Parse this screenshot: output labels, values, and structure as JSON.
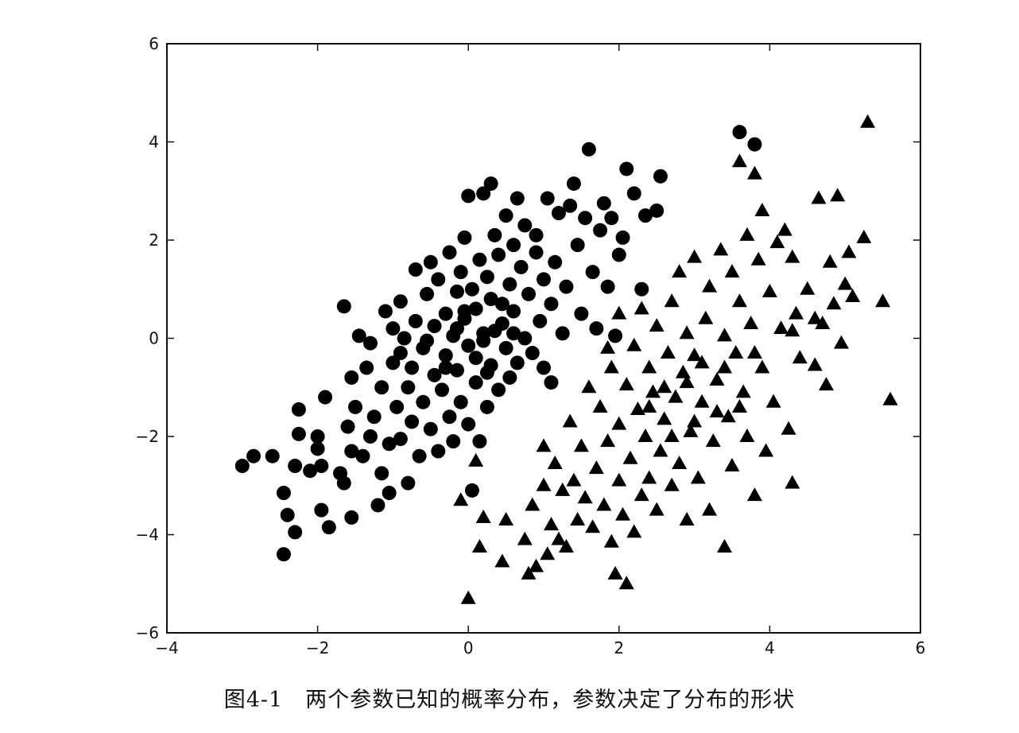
{
  "chart_data": {
    "type": "scatter",
    "title": "",
    "xlabel": "",
    "ylabel": "",
    "xlim": [
      -4,
      6
    ],
    "ylim": [
      -6,
      6
    ],
    "x_ticks": [
      "−4",
      "−2",
      "0",
      "2",
      "4",
      "6"
    ],
    "y_ticks": [
      "6",
      "4",
      "2",
      "0",
      "−2",
      "−4",
      "−6"
    ],
    "grid": false,
    "legend": "none",
    "series": [
      {
        "marker": "circle",
        "color": "#000000",
        "points": [
          [
            -3.0,
            -2.6
          ],
          [
            -2.85,
            -2.4
          ],
          [
            -2.6,
            -2.4
          ],
          [
            -2.45,
            -4.4
          ],
          [
            -2.45,
            -3.15
          ],
          [
            -2.4,
            -3.6
          ],
          [
            -2.3,
            -3.95
          ],
          [
            -2.3,
            -2.6
          ],
          [
            -2.25,
            -1.45
          ],
          [
            -2.25,
            -1.95
          ],
          [
            -2.1,
            -2.7
          ],
          [
            -2.0,
            -2.0
          ],
          [
            -2.0,
            -2.25
          ],
          [
            -1.95,
            -2.6
          ],
          [
            -1.95,
            -3.5
          ],
          [
            -1.9,
            -1.2
          ],
          [
            -1.85,
            -3.85
          ],
          [
            -1.7,
            -2.75
          ],
          [
            -1.65,
            -2.95
          ],
          [
            -1.65,
            0.65
          ],
          [
            -1.6,
            -1.8
          ],
          [
            -1.55,
            -2.3
          ],
          [
            -1.55,
            -3.65
          ],
          [
            -1.55,
            -0.8
          ],
          [
            -1.5,
            -1.4
          ],
          [
            -1.45,
            0.05
          ],
          [
            -1.4,
            -2.4
          ],
          [
            -1.35,
            -0.6
          ],
          [
            -1.3,
            -2.0
          ],
          [
            -1.3,
            -0.1
          ],
          [
            -1.25,
            -1.6
          ],
          [
            -1.2,
            -3.4
          ],
          [
            -1.15,
            -2.75
          ],
          [
            -1.15,
            -1.0
          ],
          [
            -1.1,
            0.55
          ],
          [
            -1.05,
            -3.15
          ],
          [
            -1.05,
            -2.15
          ],
          [
            -1.0,
            -0.5
          ],
          [
            -1.0,
            0.2
          ],
          [
            -0.95,
            -1.4
          ],
          [
            -0.9,
            -2.05
          ],
          [
            -0.9,
            -0.3
          ],
          [
            -0.9,
            0.75
          ],
          [
            -0.85,
            0.0
          ],
          [
            -0.8,
            -2.95
          ],
          [
            -0.8,
            -1.0
          ],
          [
            -0.75,
            -0.6
          ],
          [
            -0.75,
            -1.7
          ],
          [
            -0.7,
            1.4
          ],
          [
            -0.7,
            0.35
          ],
          [
            -0.65,
            -2.4
          ],
          [
            -0.6,
            -1.3
          ],
          [
            -0.6,
            -0.2
          ],
          [
            -0.55,
            0.9
          ],
          [
            -0.5,
            1.55
          ],
          [
            -0.5,
            -1.85
          ],
          [
            -0.45,
            -0.75
          ],
          [
            -0.45,
            0.25
          ],
          [
            -0.4,
            1.2
          ],
          [
            -0.4,
            -2.3
          ],
          [
            -0.35,
            -1.05
          ],
          [
            -0.3,
            0.5
          ],
          [
            -0.3,
            -0.35
          ],
          [
            -0.25,
            1.75
          ],
          [
            -0.25,
            -1.6
          ],
          [
            -0.2,
            -2.1
          ],
          [
            -0.2,
            0.05
          ],
          [
            -0.15,
            0.95
          ],
          [
            -0.15,
            -0.65
          ],
          [
            -0.1,
            1.35
          ],
          [
            -0.1,
            -1.3
          ],
          [
            -0.05,
            2.05
          ],
          [
            -0.05,
            0.4
          ],
          [
            0.0,
            2.9
          ],
          [
            0.0,
            -0.15
          ],
          [
            0.0,
            -1.75
          ],
          [
            0.05,
            1.0
          ],
          [
            0.05,
            -3.1
          ],
          [
            0.1,
            0.6
          ],
          [
            0.1,
            -0.9
          ],
          [
            0.15,
            1.6
          ],
          [
            0.15,
            -2.1
          ],
          [
            0.2,
            2.95
          ],
          [
            0.2,
            0.1
          ],
          [
            0.25,
            -1.4
          ],
          [
            0.25,
            1.25
          ],
          [
            0.3,
            3.15
          ],
          [
            0.3,
            -0.55
          ],
          [
            0.3,
            0.8
          ],
          [
            0.35,
            2.1
          ],
          [
            0.4,
            -1.05
          ],
          [
            0.4,
            1.7
          ],
          [
            0.45,
            0.3
          ],
          [
            0.5,
            -0.2
          ],
          [
            0.5,
            2.5
          ],
          [
            0.55,
            1.1
          ],
          [
            0.55,
            -0.8
          ],
          [
            0.6,
            1.9
          ],
          [
            0.6,
            0.55
          ],
          [
            0.65,
            2.85
          ],
          [
            0.65,
            -0.5
          ],
          [
            0.7,
            1.45
          ],
          [
            0.75,
            2.3
          ],
          [
            0.75,
            0.0
          ],
          [
            0.8,
            0.9
          ],
          [
            0.85,
            -0.3
          ],
          [
            0.9,
            1.75
          ],
          [
            0.9,
            2.1
          ],
          [
            0.95,
            0.35
          ],
          [
            1.0,
            1.2
          ],
          [
            1.0,
            -0.6
          ],
          [
            1.05,
            2.85
          ],
          [
            1.1,
            0.7
          ],
          [
            1.1,
            -0.9
          ],
          [
            1.15,
            1.55
          ],
          [
            1.2,
            2.55
          ],
          [
            1.25,
            0.1
          ],
          [
            1.3,
            1.05
          ],
          [
            1.35,
            2.7
          ],
          [
            1.4,
            3.15
          ],
          [
            1.45,
            1.9
          ],
          [
            1.5,
            0.5
          ],
          [
            1.55,
            2.45
          ],
          [
            1.6,
            3.85
          ],
          [
            1.65,
            1.35
          ],
          [
            1.7,
            0.2
          ],
          [
            1.75,
            2.2
          ],
          [
            1.8,
            2.75
          ],
          [
            1.85,
            1.05
          ],
          [
            1.9,
            2.45
          ],
          [
            1.95,
            0.05
          ],
          [
            2.0,
            1.7
          ],
          [
            2.05,
            2.05
          ],
          [
            2.1,
            3.45
          ],
          [
            2.2,
            2.95
          ],
          [
            2.3,
            1.0
          ],
          [
            2.35,
            2.5
          ],
          [
            2.5,
            2.6
          ],
          [
            2.55,
            3.3
          ],
          [
            3.6,
            4.2
          ],
          [
            3.8,
            3.95
          ],
          [
            0.2,
            -0.05
          ],
          [
            -0.05,
            0.55
          ],
          [
            0.35,
            0.15
          ],
          [
            -0.3,
            -0.6
          ],
          [
            0.1,
            -0.4
          ],
          [
            -0.55,
            -0.05
          ],
          [
            0.45,
            0.7
          ],
          [
            -0.15,
            0.2
          ],
          [
            0.25,
            -0.7
          ],
          [
            0.6,
            0.1
          ]
        ]
      },
      {
        "marker": "triangle",
        "color": "#000000",
        "points": [
          [
            0.0,
            -5.3
          ],
          [
            -0.1,
            -3.3
          ],
          [
            0.1,
            -2.5
          ],
          [
            0.15,
            -4.25
          ],
          [
            0.2,
            -3.65
          ],
          [
            0.45,
            -4.55
          ],
          [
            0.5,
            -3.7
          ],
          [
            0.75,
            -4.1
          ],
          [
            0.8,
            -4.8
          ],
          [
            0.85,
            -3.4
          ],
          [
            0.9,
            -4.65
          ],
          [
            1.0,
            -2.2
          ],
          [
            1.0,
            -3.0
          ],
          [
            1.05,
            -4.4
          ],
          [
            1.1,
            -3.8
          ],
          [
            1.15,
            -2.55
          ],
          [
            1.2,
            -4.1
          ],
          [
            1.25,
            -3.1
          ],
          [
            1.3,
            -4.25
          ],
          [
            1.35,
            -1.7
          ],
          [
            1.4,
            -2.9
          ],
          [
            1.45,
            -3.7
          ],
          [
            1.5,
            -2.2
          ],
          [
            1.55,
            -3.25
          ],
          [
            1.6,
            -1.0
          ],
          [
            1.65,
            -3.85
          ],
          [
            1.7,
            -2.65
          ],
          [
            1.75,
            -1.4
          ],
          [
            1.8,
            -3.4
          ],
          [
            1.85,
            -2.1
          ],
          [
            1.9,
            -4.15
          ],
          [
            1.9,
            -0.6
          ],
          [
            1.95,
            -4.8
          ],
          [
            2.0,
            -2.9
          ],
          [
            2.0,
            -1.75
          ],
          [
            2.05,
            -3.6
          ],
          [
            2.1,
            -0.95
          ],
          [
            2.1,
            -5.0
          ],
          [
            2.15,
            -2.45
          ],
          [
            2.2,
            -3.95
          ],
          [
            2.2,
            -0.15
          ],
          [
            2.25,
            -1.45
          ],
          [
            2.3,
            -3.2
          ],
          [
            2.35,
            -2.0
          ],
          [
            2.4,
            -0.6
          ],
          [
            2.4,
            -2.85
          ],
          [
            2.45,
            -1.1
          ],
          [
            2.5,
            -3.5
          ],
          [
            2.5,
            0.25
          ],
          [
            2.55,
            -2.3
          ],
          [
            2.6,
            -1.65
          ],
          [
            2.65,
            -0.3
          ],
          [
            2.7,
            -3.0
          ],
          [
            2.7,
            0.75
          ],
          [
            2.75,
            -1.2
          ],
          [
            2.8,
            -2.55
          ],
          [
            2.8,
            1.35
          ],
          [
            2.85,
            -0.7
          ],
          [
            2.9,
            -3.7
          ],
          [
            2.9,
            0.1
          ],
          [
            2.95,
            -1.9
          ],
          [
            3.0,
            1.65
          ],
          [
            3.0,
            -0.35
          ],
          [
            3.05,
            -2.85
          ],
          [
            3.1,
            -1.3
          ],
          [
            3.15,
            0.4
          ],
          [
            3.2,
            -3.5
          ],
          [
            3.2,
            1.05
          ],
          [
            3.25,
            -2.1
          ],
          [
            3.3,
            -0.85
          ],
          [
            3.35,
            1.8
          ],
          [
            3.4,
            -4.25
          ],
          [
            3.4,
            0.05
          ],
          [
            3.45,
            -1.6
          ],
          [
            3.5,
            -2.6
          ],
          [
            3.5,
            1.35
          ],
          [
            3.55,
            -0.3
          ],
          [
            3.6,
            3.6
          ],
          [
            3.6,
            0.75
          ],
          [
            3.65,
            -1.1
          ],
          [
            3.7,
            2.1
          ],
          [
            3.7,
            -2.0
          ],
          [
            3.75,
            0.3
          ],
          [
            3.8,
            3.35
          ],
          [
            3.8,
            -3.2
          ],
          [
            3.85,
            1.6
          ],
          [
            3.9,
            2.6
          ],
          [
            3.9,
            -0.6
          ],
          [
            3.95,
            -2.3
          ],
          [
            4.0,
            0.95
          ],
          [
            4.05,
            -1.3
          ],
          [
            4.1,
            1.95
          ],
          [
            4.15,
            0.2
          ],
          [
            4.2,
            2.2
          ],
          [
            4.25,
            -1.85
          ],
          [
            4.3,
            -2.95
          ],
          [
            4.3,
            1.65
          ],
          [
            4.35,
            0.5
          ],
          [
            4.4,
            -0.4
          ],
          [
            4.5,
            1.0
          ],
          [
            4.6,
            -0.55
          ],
          [
            4.65,
            2.85
          ],
          [
            4.7,
            0.3
          ],
          [
            4.75,
            -0.95
          ],
          [
            4.8,
            1.55
          ],
          [
            4.85,
            0.7
          ],
          [
            4.9,
            2.9
          ],
          [
            4.95,
            -0.1
          ],
          [
            5.0,
            1.1
          ],
          [
            5.05,
            1.75
          ],
          [
            5.1,
            0.85
          ],
          [
            5.25,
            2.05
          ],
          [
            5.3,
            4.4
          ],
          [
            5.5,
            0.75
          ],
          [
            5.6,
            -1.25
          ],
          [
            2.6,
            -1.0
          ],
          [
            3.0,
            -1.7
          ],
          [
            2.9,
            -0.9
          ],
          [
            3.3,
            -1.5
          ],
          [
            3.1,
            -0.5
          ],
          [
            2.4,
            -1.4
          ],
          [
            3.6,
            -1.4
          ],
          [
            2.7,
            -2.0
          ],
          [
            3.4,
            -0.6
          ],
          [
            3.8,
            -0.3
          ],
          [
            2.0,
            0.5
          ],
          [
            1.85,
            -0.2
          ],
          [
            2.3,
            0.6
          ],
          [
            4.3,
            0.15
          ],
          [
            4.6,
            0.4
          ]
        ]
      }
    ]
  },
  "caption": {
    "number": "图4-1",
    "text": "两个参数已知的概率分布，参数决定了分布的形状"
  }
}
